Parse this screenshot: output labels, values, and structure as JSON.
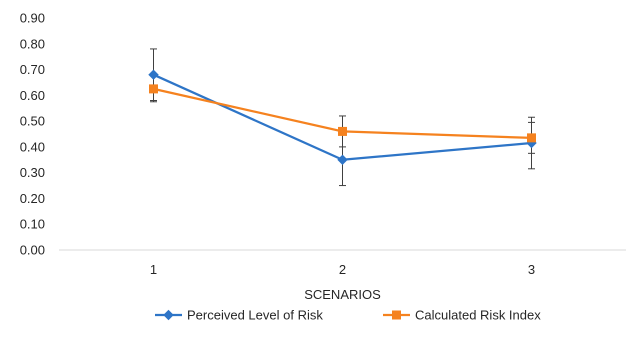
{
  "chart_data": {
    "type": "line",
    "title": "",
    "xlabel": "SCENARIOS",
    "ylabel": "",
    "categories": [
      "1",
      "2",
      "3"
    ],
    "ylim": [
      0,
      0.9
    ],
    "yticks": [
      "0.00",
      "0.10",
      "0.20",
      "0.30",
      "0.40",
      "0.50",
      "0.60",
      "0.70",
      "0.80",
      "0.90"
    ],
    "grid": false,
    "legend_position": "bottom",
    "series": [
      {
        "name": "Perceived Level of Risk",
        "color": "#2e75c7",
        "marker": "diamond",
        "values": [
          0.68,
          0.35,
          0.415
        ],
        "error": [
          0.1,
          0.1,
          0.1
        ]
      },
      {
        "name": "Calculated Risk Index",
        "color": "#f5821f",
        "marker": "square",
        "values": [
          0.625,
          0.46,
          0.435
        ],
        "error": [
          0.05,
          0.06,
          0.06
        ]
      }
    ]
  }
}
